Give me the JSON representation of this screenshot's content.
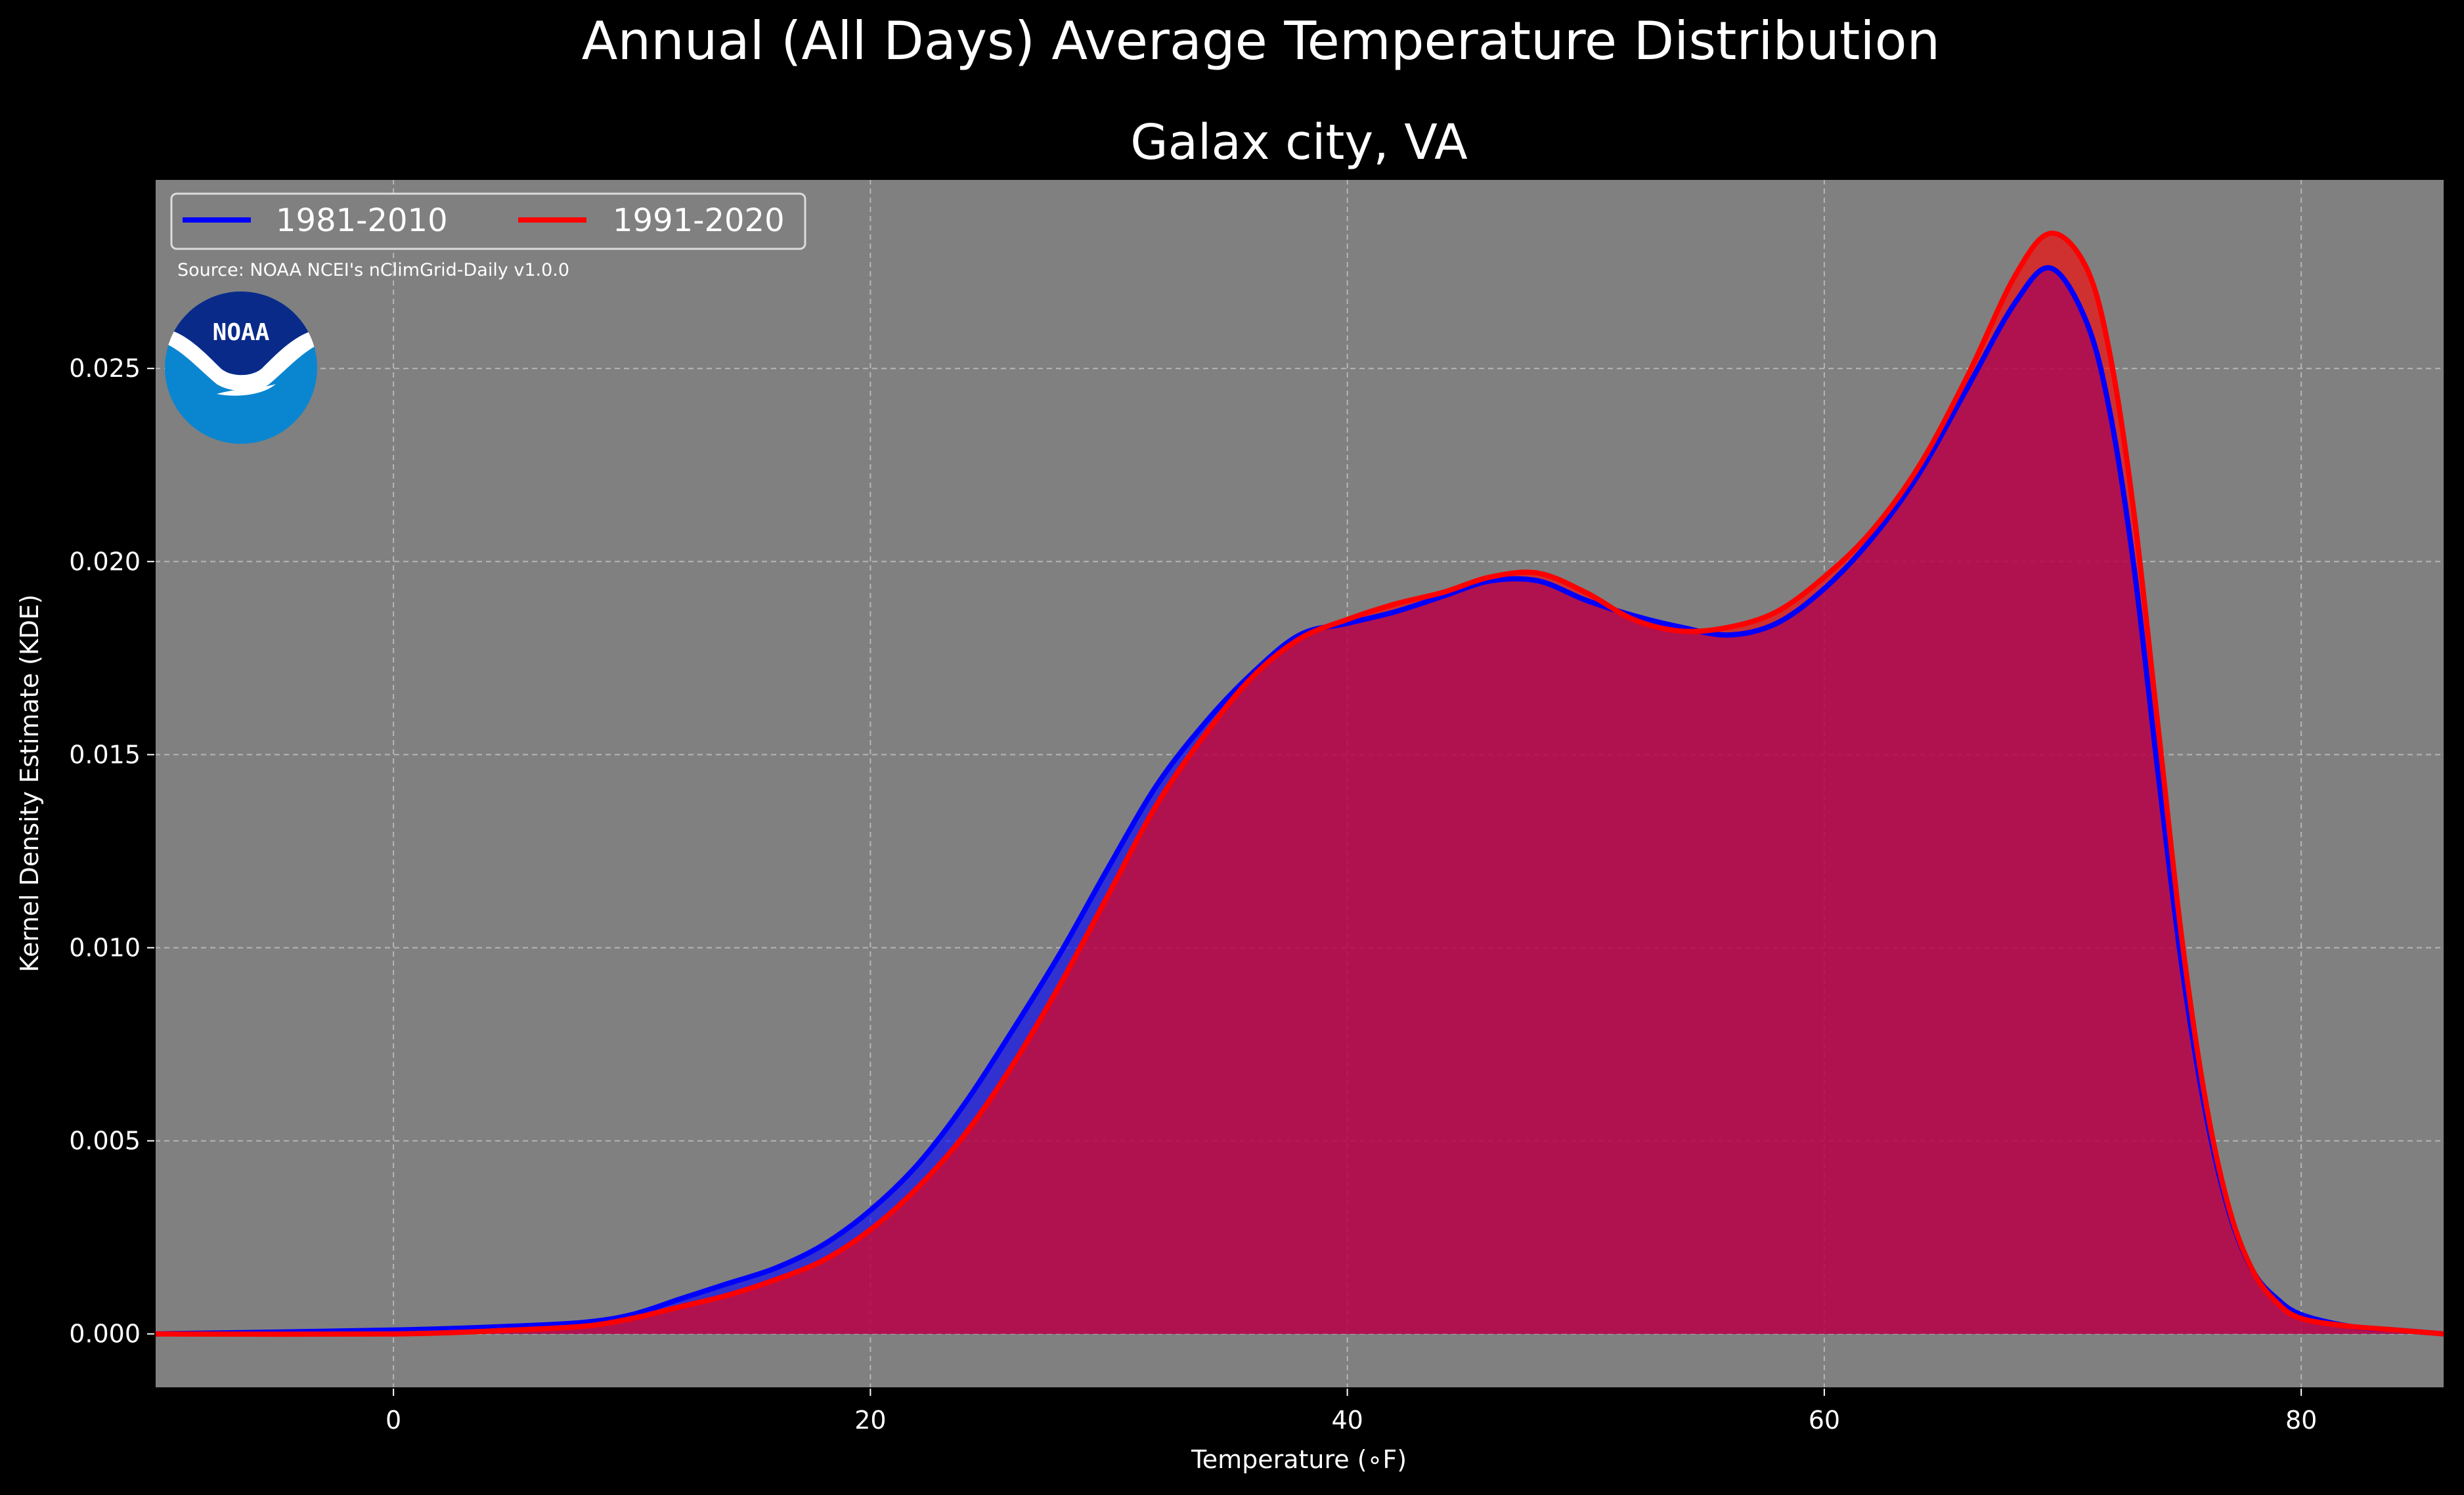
{
  "chart_data": {
    "type": "area",
    "title": "Annual (All Days) Average Temperature Distribution",
    "subtitle": "Galax city, VA",
    "xlabel": "Temperature (∘F)",
    "ylabel": "Kernel Density Estimate (KDE)",
    "xlim": [
      -10,
      86
    ],
    "ylim": [
      -0.0014,
      0.0299
    ],
    "xticks": [
      0,
      20,
      40,
      60,
      80
    ],
    "xtick_labels": [
      "0",
      "20",
      "40",
      "60",
      "80"
    ],
    "yticks": [
      0.0,
      0.005,
      0.01,
      0.015,
      0.02,
      0.025
    ],
    "ytick_labels": [
      "0.000",
      "0.005",
      "0.010",
      "0.015",
      "0.020",
      "0.025"
    ],
    "grid": true,
    "legend_position": "top-left",
    "source": "Source: NOAA NCEI's nClimGrid-Daily v1.0.0",
    "logo_text": "NOAA",
    "background_color": "#808080",
    "figure_color": "#000000",
    "series": [
      {
        "name": "1981-2010",
        "color": "#0000ff",
        "fill": "#0000ff",
        "x": [
          -10,
          0,
          5,
          8,
          10,
          12,
          14,
          16,
          18,
          20,
          22,
          24,
          26,
          28,
          30,
          32,
          34,
          36,
          38,
          40,
          42,
          44,
          46,
          48,
          50,
          52,
          54,
          56,
          58,
          60,
          62,
          64,
          66,
          68,
          69.5,
          71,
          72,
          73,
          74,
          75,
          76,
          77,
          78,
          79,
          80,
          82,
          84,
          86
        ],
        "y": [
          0.0,
          0.0001,
          0.0002,
          0.0003,
          0.0005,
          0.0009,
          0.0013,
          0.0017,
          0.0023,
          0.0032,
          0.0044,
          0.006,
          0.0079,
          0.0099,
          0.0121,
          0.0142,
          0.0158,
          0.0171,
          0.0181,
          0.0184,
          0.0187,
          0.0191,
          0.0195,
          0.0195,
          0.019,
          0.0186,
          0.0183,
          0.0181,
          0.0184,
          0.0193,
          0.0206,
          0.0223,
          0.0245,
          0.0267,
          0.0276,
          0.0262,
          0.0238,
          0.0198,
          0.0145,
          0.0095,
          0.0057,
          0.0031,
          0.0016,
          0.0009,
          0.0005,
          0.0002,
          0.0001,
          0.0
        ]
      },
      {
        "name": "1991-2020",
        "color": "#ff0000",
        "fill": "#ff0000",
        "x": [
          -10,
          0,
          5,
          8,
          10,
          12,
          14,
          16,
          18,
          20,
          22,
          24,
          26,
          28,
          30,
          32,
          34,
          36,
          38,
          40,
          42,
          44,
          46,
          48,
          50,
          52,
          54,
          56,
          58,
          60,
          62,
          64,
          66,
          68,
          69.5,
          71,
          72,
          73,
          74,
          75,
          76,
          77,
          78,
          79,
          80,
          82,
          84,
          86
        ],
        "y": [
          0.0,
          0.0,
          0.0001,
          0.0002,
          0.0004,
          0.0007,
          0.001,
          0.0014,
          0.0019,
          0.0027,
          0.0038,
          0.0052,
          0.007,
          0.0091,
          0.0114,
          0.0137,
          0.0155,
          0.017,
          0.018,
          0.0185,
          0.0189,
          0.0192,
          0.0196,
          0.0197,
          0.0192,
          0.0185,
          0.0182,
          0.0183,
          0.0187,
          0.0196,
          0.0208,
          0.0225,
          0.0248,
          0.0274,
          0.0285,
          0.0276,
          0.0253,
          0.0212,
          0.0157,
          0.0102,
          0.006,
          0.0032,
          0.0016,
          0.0008,
          0.0004,
          0.0002,
          0.0001,
          0.0
        ]
      }
    ]
  }
}
